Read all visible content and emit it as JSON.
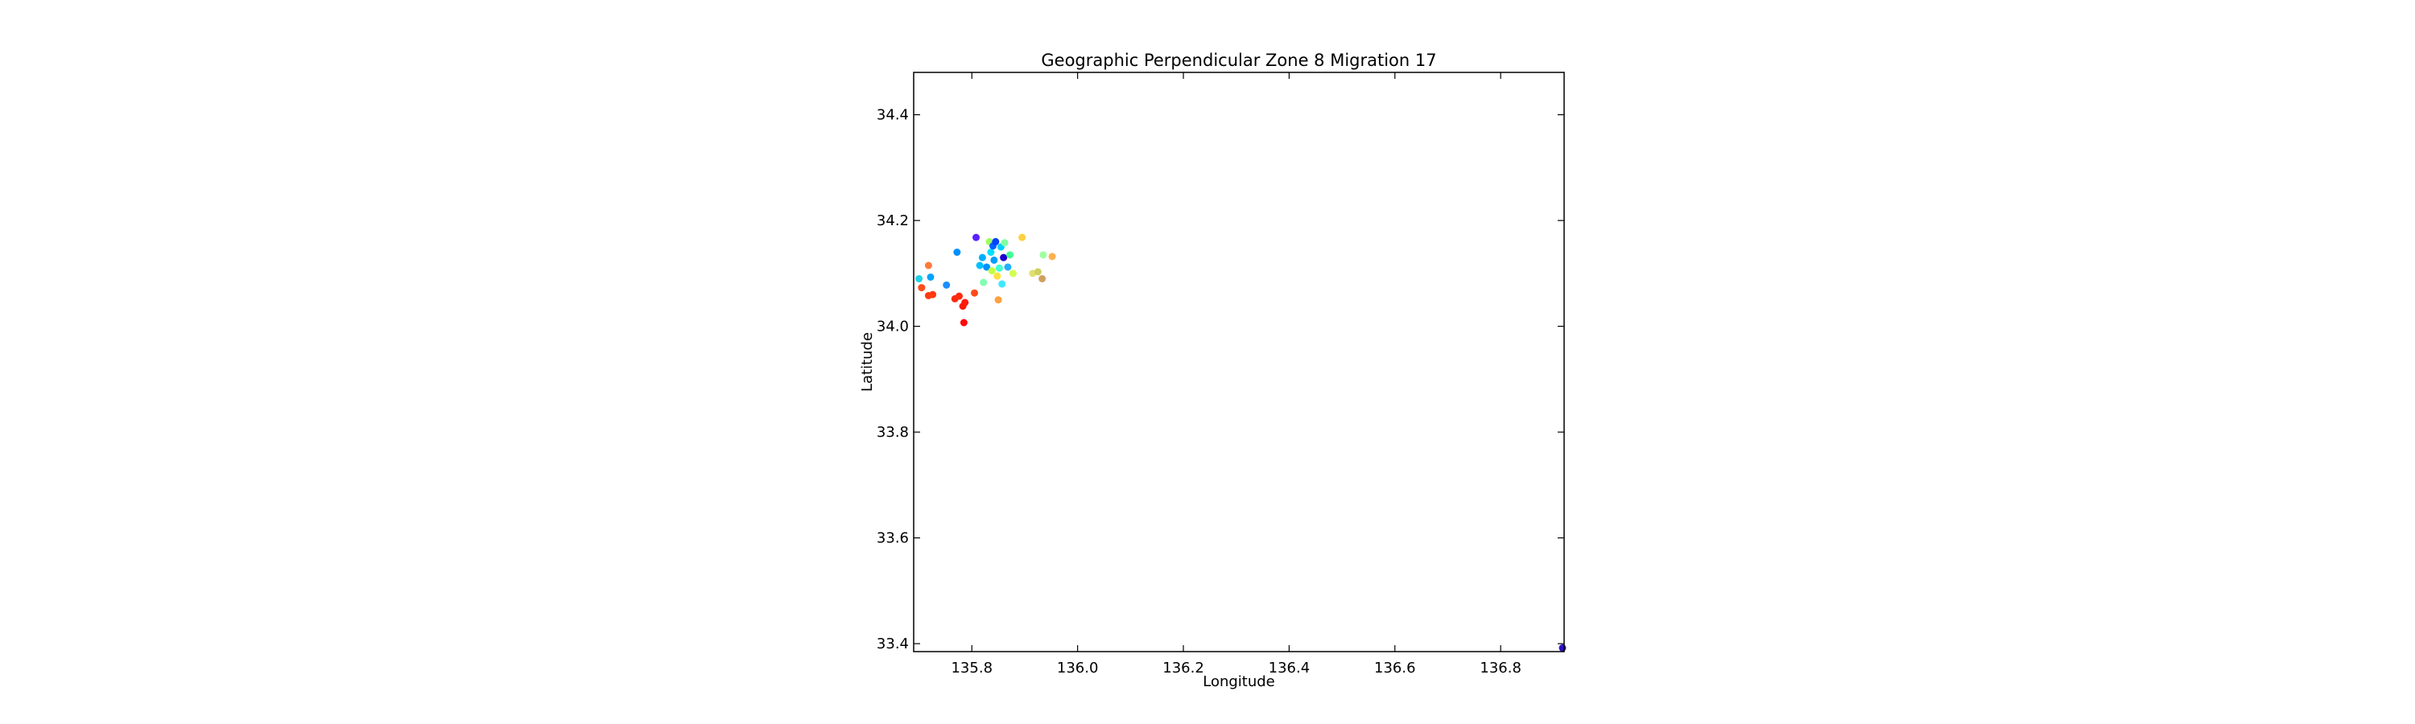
{
  "chart_data": {
    "type": "scatter",
    "title": "Geographic Perpendicular Zone 8 Migration 17",
    "xlabel": "Longitude",
    "ylabel": "Latitude",
    "xlim": [
      135.69,
      136.92
    ],
    "ylim": [
      33.385,
      34.48
    ],
    "xticks": [
      135.8,
      136.0,
      136.2,
      136.4,
      136.6,
      136.8
    ],
    "xtick_labels": [
      "135.8",
      "136.0",
      "136.2",
      "136.4",
      "136.6",
      "136.8"
    ],
    "yticks": [
      33.4,
      33.6,
      33.8,
      34.0,
      34.2,
      34.4
    ],
    "ytick_labels": [
      "33.4",
      "33.6",
      "33.8",
      "34.0",
      "34.2",
      "34.4"
    ],
    "grid": false,
    "colormap": "jet",
    "points": [
      {
        "x": 135.7,
        "y": 34.09,
        "color": "#1fd1e6"
      },
      {
        "x": 135.705,
        "y": 34.073,
        "color": "#ff4a1a"
      },
      {
        "x": 135.718,
        "y": 34.115,
        "color": "#ff7a3a"
      },
      {
        "x": 135.722,
        "y": 34.093,
        "color": "#00a4ff"
      },
      {
        "x": 135.718,
        "y": 34.058,
        "color": "#ff3a10"
      },
      {
        "x": 135.726,
        "y": 34.06,
        "color": "#ff3a10"
      },
      {
        "x": 135.752,
        "y": 34.078,
        "color": "#1a8fff"
      },
      {
        "x": 135.768,
        "y": 34.052,
        "color": "#ff2a10"
      },
      {
        "x": 135.776,
        "y": 34.057,
        "color": "#ff2a10"
      },
      {
        "x": 135.772,
        "y": 34.14,
        "color": "#0090ff"
      },
      {
        "x": 135.783,
        "y": 34.038,
        "color": "#ff1a0a"
      },
      {
        "x": 135.787,
        "y": 34.045,
        "color": "#ff1a0a"
      },
      {
        "x": 135.785,
        "y": 34.007,
        "color": "#ff0a0a"
      },
      {
        "x": 135.805,
        "y": 34.063,
        "color": "#ff4a1a"
      },
      {
        "x": 135.808,
        "y": 34.168,
        "color": "#5a20ff"
      },
      {
        "x": 135.815,
        "y": 34.115,
        "color": "#00c0ff"
      },
      {
        "x": 135.82,
        "y": 34.13,
        "color": "#00b0ff"
      },
      {
        "x": 135.822,
        "y": 34.083,
        "color": "#80ffb0"
      },
      {
        "x": 135.828,
        "y": 34.112,
        "color": "#0090ff"
      },
      {
        "x": 135.833,
        "y": 34.16,
        "color": "#a0ff60"
      },
      {
        "x": 135.836,
        "y": 34.14,
        "color": "#00e0ff"
      },
      {
        "x": 135.838,
        "y": 34.105,
        "color": "#c0ff40"
      },
      {
        "x": 135.84,
        "y": 34.152,
        "color": "#0060ff"
      },
      {
        "x": 135.842,
        "y": 34.125,
        "color": "#00a0ff"
      },
      {
        "x": 135.845,
        "y": 34.16,
        "color": "#0040ff"
      },
      {
        "x": 135.848,
        "y": 34.095,
        "color": "#ffe040"
      },
      {
        "x": 135.85,
        "y": 34.05,
        "color": "#ffa040"
      },
      {
        "x": 135.852,
        "y": 34.11,
        "color": "#40ffd0"
      },
      {
        "x": 135.855,
        "y": 34.15,
        "color": "#00d0ff"
      },
      {
        "x": 135.857,
        "y": 34.08,
        "color": "#40e8ff"
      },
      {
        "x": 135.86,
        "y": 34.13,
        "color": "#2000d0"
      },
      {
        "x": 135.862,
        "y": 34.158,
        "color": "#80ffa0"
      },
      {
        "x": 135.868,
        "y": 34.112,
        "color": "#20b0ff"
      },
      {
        "x": 135.872,
        "y": 34.135,
        "color": "#40ff90"
      },
      {
        "x": 135.878,
        "y": 34.1,
        "color": "#d0ff50"
      },
      {
        "x": 135.895,
        "y": 34.168,
        "color": "#ffd040"
      },
      {
        "x": 135.915,
        "y": 34.1,
        "color": "#e0e070"
      },
      {
        "x": 135.925,
        "y": 34.103,
        "color": "#d0d060"
      },
      {
        "x": 135.933,
        "y": 34.09,
        "color": "#d0a060"
      },
      {
        "x": 135.935,
        "y": 34.135,
        "color": "#a0ffa0"
      },
      {
        "x": 135.952,
        "y": 34.132,
        "color": "#ffb050"
      },
      {
        "x": 136.917,
        "y": 33.392,
        "color": "#3010c0"
      }
    ]
  }
}
